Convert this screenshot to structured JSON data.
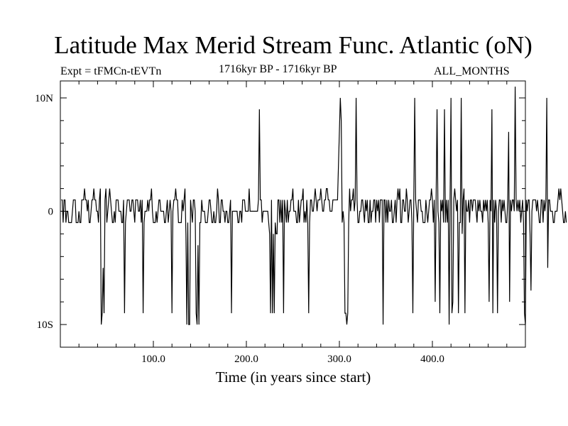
{
  "chart_data": {
    "type": "line",
    "title": "Latitude Max Merid Stream Func. Atlantic (oN)",
    "subtitle_left": "Expt = tFMCn-tEVTn",
    "subtitle_center": "1716kyr BP - 1716kyr BP",
    "subtitle_right": "ALL_MONTHS",
    "xlabel": "Time (in years since start)",
    "ylabel": "",
    "xlim": [
      0,
      500
    ],
    "ylim": [
      -12,
      11.5
    ],
    "x_ticks": [
      100,
      200,
      300,
      400
    ],
    "x_tick_labels": [
      "100.0",
      "200.0",
      "300.0",
      "400.0"
    ],
    "y_ticks": [
      10,
      0,
      -10
    ],
    "y_tick_labels": [
      "10N",
      "0",
      "10S"
    ],
    "grid": false,
    "series": [
      {
        "x_start": 1,
        "x_step": 1,
        "values": [
          1,
          1,
          -1,
          1,
          1,
          -1,
          0,
          0,
          -1,
          -1,
          -1,
          -1,
          0,
          1,
          1,
          1,
          -1,
          -1,
          -1,
          0,
          -1,
          -1,
          1,
          1,
          1,
          2,
          1,
          1,
          0,
          1,
          -1,
          -1,
          0,
          1,
          1,
          2,
          1,
          1,
          0,
          0,
          -1,
          1,
          2,
          -10,
          -9,
          -5,
          -9,
          1,
          2,
          -1,
          0,
          1,
          2,
          1,
          0,
          -1,
          -1,
          0,
          -1,
          1,
          1,
          1,
          0,
          0,
          0,
          -1,
          -1,
          1,
          -9,
          -1,
          0,
          1,
          1,
          1,
          0,
          0,
          1,
          1,
          0,
          -1,
          1,
          1,
          1,
          0,
          0,
          1,
          -1,
          1,
          -9,
          -1,
          0,
          0,
          0,
          1,
          0,
          1,
          1,
          2,
          0,
          -1,
          -1,
          -1,
          0,
          -1,
          0,
          1,
          1,
          0,
          0,
          0,
          0,
          -1,
          -1,
          0,
          1,
          -1,
          0,
          1,
          0,
          -9,
          0,
          1,
          1,
          2,
          1,
          1,
          -1,
          -1,
          -1,
          -1,
          1,
          0,
          1,
          2,
          -2,
          -10,
          -1,
          -10,
          -10,
          1,
          0,
          -1,
          1,
          1,
          0,
          -9,
          -10,
          -3,
          -10,
          -1,
          -1,
          1,
          0,
          0,
          0,
          -1,
          -1,
          -1,
          0,
          1,
          1,
          0,
          -1,
          -1,
          0,
          -1,
          -1,
          0,
          2,
          1,
          -1,
          -1,
          1,
          1,
          0,
          0,
          -1,
          0,
          0,
          -1,
          -1,
          0,
          1,
          -9,
          0,
          0,
          0,
          0,
          0,
          0,
          -1,
          -1,
          0,
          0,
          -1,
          1,
          1,
          1,
          0,
          0,
          0,
          0,
          2,
          0,
          0,
          0,
          0,
          0,
          0,
          0,
          0,
          0,
          1,
          9,
          1,
          1,
          -1,
          0,
          0,
          0,
          0,
          0,
          0,
          -1,
          -2,
          -9,
          1,
          -9,
          -2,
          -9,
          -1,
          -2,
          -2,
          1,
          1,
          -1,
          1,
          -1,
          1,
          -9,
          1,
          0,
          -1,
          1,
          -1,
          0,
          0,
          1,
          1,
          2,
          0,
          0,
          0,
          -1,
          -1,
          1,
          -1,
          0,
          1,
          1,
          2,
          -1,
          0,
          -1,
          1,
          -1,
          -9,
          -1,
          1,
          1,
          0,
          0,
          1,
          2,
          1,
          0,
          1,
          1,
          1,
          2,
          1,
          0,
          0,
          1,
          1,
          2,
          2,
          1,
          1,
          0,
          0,
          0,
          1,
          1,
          1,
          1,
          1,
          1,
          4,
          7,
          10,
          8,
          -1,
          0,
          -1,
          -9,
          -9,
          -10,
          -9,
          -1,
          2,
          0,
          1,
          1,
          2,
          0,
          1,
          10,
          1,
          -1,
          -1,
          0,
          0,
          1,
          1,
          0,
          -1,
          1,
          0,
          1,
          -1,
          -1,
          1,
          -1,
          0,
          0,
          1,
          1,
          -1,
          1,
          0,
          1,
          -1,
          1,
          1,
          1,
          -10,
          1,
          1,
          -1,
          1,
          -1,
          1,
          0,
          0,
          1,
          -1,
          -1,
          0,
          1,
          -1,
          1,
          2,
          1,
          2,
          -1,
          -1,
          1,
          1,
          0,
          0,
          2,
          1,
          -1,
          0,
          1,
          1,
          -1,
          -9,
          1,
          10,
          1,
          0,
          -1,
          1,
          1,
          1,
          0,
          0,
          -1,
          -1,
          -1,
          1,
          0,
          -1,
          0,
          1,
          1,
          2,
          1,
          -1,
          1,
          -8,
          1,
          9,
          0,
          -1,
          -9,
          1,
          0,
          1,
          -1,
          9,
          -1,
          1,
          -1,
          1,
          -10,
          1,
          10,
          -9,
          -8,
          1,
          2,
          1,
          0,
          1,
          -9,
          -1,
          -1,
          10,
          -2,
          1,
          2,
          -9,
          1,
          0,
          0,
          1,
          -1,
          1,
          1,
          0,
          1,
          1,
          1,
          0,
          -1,
          1,
          0,
          1,
          0,
          0,
          -1,
          1,
          0,
          1,
          0,
          1,
          -1,
          -8,
          1,
          0,
          9,
          -9,
          1,
          -1,
          1,
          0,
          -9,
          0,
          1,
          1,
          -1,
          1,
          0,
          1,
          0,
          -1,
          -1,
          1,
          7,
          -8,
          1,
          0,
          1,
          1,
          0,
          11,
          1,
          0,
          1,
          0,
          1,
          -1,
          0,
          1,
          -1,
          -9,
          -10,
          1,
          0,
          1,
          1,
          -2,
          -7,
          0,
          1,
          1,
          1,
          1,
          0,
          1,
          0,
          -1,
          -1,
          1,
          1,
          -1,
          1,
          0,
          1,
          10,
          -5,
          1,
          1,
          0,
          0,
          0,
          -1,
          -1,
          0,
          0,
          0,
          1,
          2,
          1,
          2,
          1,
          0,
          -1,
          -1,
          0,
          -1
        ]
      }
    ]
  }
}
